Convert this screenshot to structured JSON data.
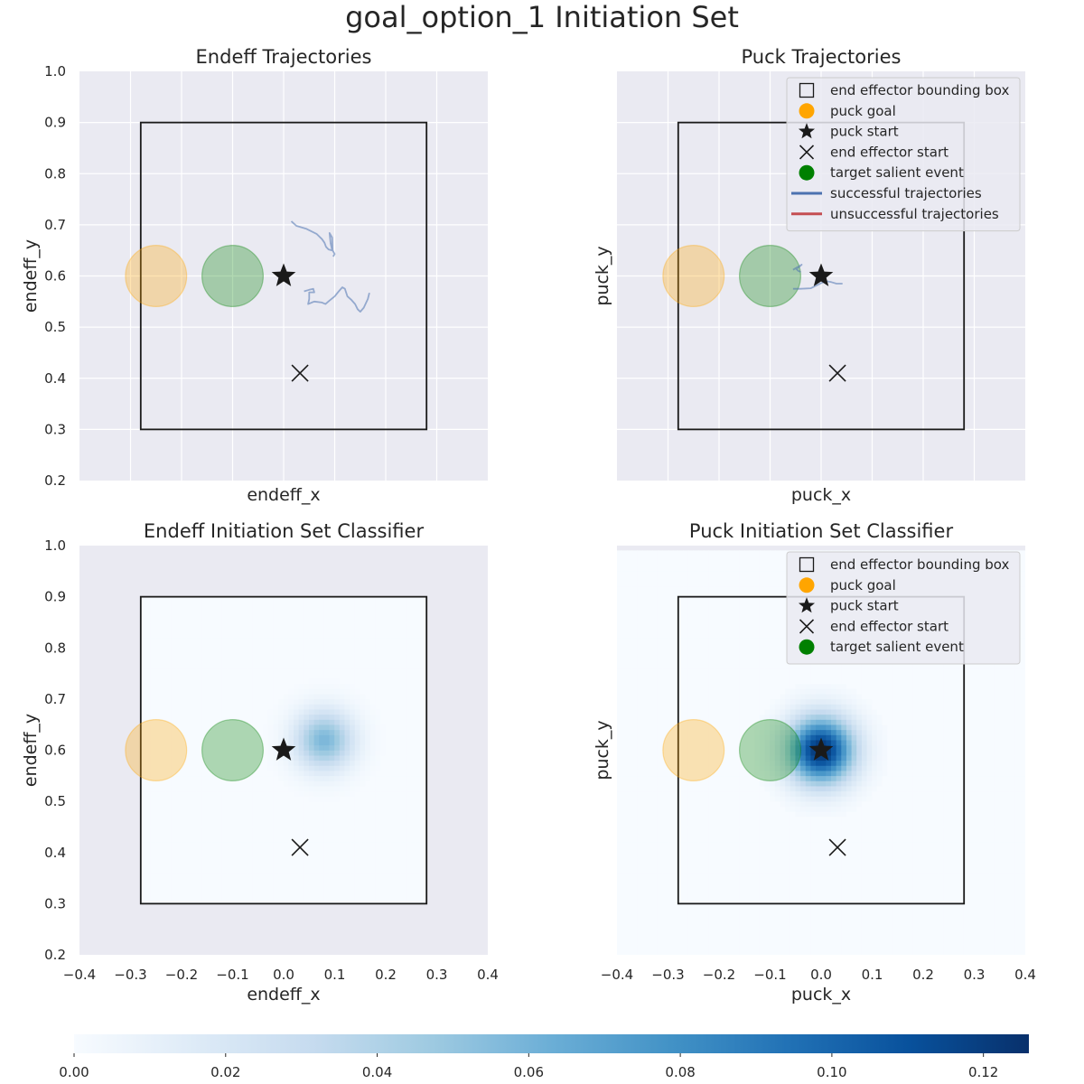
{
  "figure": {
    "title": "goal_option_1 Initiation Set",
    "colorbar": {
      "min": 0.0,
      "max": 0.126,
      "ticks": [
        "0.00",
        "0.02",
        "0.04",
        "0.06",
        "0.08",
        "0.10",
        "0.12"
      ],
      "colormap": "Blues"
    }
  },
  "chart_data": [
    {
      "id": "endeff-trajectories",
      "type": "line",
      "title": "Endeff Trajectories",
      "xlabel": "endeff_x",
      "ylabel": "endeff_y",
      "xlim": [
        -0.4,
        0.4
      ],
      "ylim": [
        0.2,
        1.0
      ],
      "xticks_shown": false,
      "yticks_shown": true,
      "yticks": [
        "0.2",
        "0.3",
        "0.4",
        "0.5",
        "0.6",
        "0.7",
        "0.8",
        "0.9",
        "1.0"
      ],
      "grid": true,
      "bounding_box": {
        "x": [
          -0.28,
          0.28
        ],
        "y": [
          0.3,
          0.9
        ]
      },
      "puck_goal": {
        "x": -0.25,
        "y": 0.6
      },
      "target_salient_event": {
        "x": -0.1,
        "y": 0.6
      },
      "puck_start": {
        "x": 0.0,
        "y": 0.6
      },
      "end_effector_start": {
        "x": 0.032,
        "y": 0.41
      },
      "trajectories": [
        {
          "outcome": "successful",
          "points": [
            [
              0.015,
              0.707
            ],
            [
              0.025,
              0.698
            ],
            [
              0.045,
              0.692
            ],
            [
              0.065,
              0.682
            ],
            [
              0.075,
              0.672
            ],
            [
              0.08,
              0.665
            ],
            [
              0.083,
              0.657
            ],
            [
              0.088,
              0.652
            ],
            [
              0.095,
              0.65
            ],
            [
              0.092,
              0.664
            ],
            [
              0.09,
              0.684
            ],
            [
              0.095,
              0.675
            ],
            [
              0.096,
              0.65
            ],
            [
              0.1,
              0.643
            ],
            [
              0.097,
              0.638
            ]
          ]
        },
        {
          "outcome": "successful",
          "points": [
            [
              0.04,
              0.57
            ],
            [
              0.05,
              0.573
            ],
            [
              0.058,
              0.575
            ],
            [
              0.06,
              0.568
            ],
            [
              0.05,
              0.568
            ],
            [
              0.05,
              0.555
            ],
            [
              0.048,
              0.545
            ],
            [
              0.055,
              0.548
            ],
            [
              0.06,
              0.55
            ],
            [
              0.075,
              0.548
            ],
            [
              0.082,
              0.545
            ],
            [
              0.09,
              0.552
            ],
            [
              0.1,
              0.56
            ],
            [
              0.108,
              0.57
            ],
            [
              0.115,
              0.578
            ],
            [
              0.12,
              0.575
            ],
            [
              0.125,
              0.56
            ],
            [
              0.133,
              0.553
            ],
            [
              0.14,
              0.545
            ],
            [
              0.145,
              0.535
            ],
            [
              0.15,
              0.53
            ],
            [
              0.157,
              0.538
            ],
            [
              0.165,
              0.555
            ],
            [
              0.168,
              0.567
            ]
          ]
        }
      ]
    },
    {
      "id": "puck-trajectories",
      "type": "line",
      "title": "Puck Trajectories",
      "xlabel": "puck_x",
      "ylabel": "puck_y",
      "xlim": [
        -0.4,
        0.4
      ],
      "ylim": [
        0.2,
        1.0
      ],
      "xticks_shown": false,
      "yticks_shown": false,
      "grid": true,
      "bounding_box": {
        "x": [
          -0.28,
          0.28
        ],
        "y": [
          0.3,
          0.9
        ]
      },
      "puck_goal": {
        "x": -0.25,
        "y": 0.6
      },
      "target_salient_event": {
        "x": -0.1,
        "y": 0.6
      },
      "puck_start": {
        "x": 0.0,
        "y": 0.6
      },
      "end_effector_start": {
        "x": 0.032,
        "y": 0.41
      },
      "legend": {
        "placement": "top-right",
        "entries": [
          "end effector bounding box",
          "puck goal",
          "puck start",
          "end effector start",
          "target salient event",
          "successful trajectories",
          "unsuccessful trajectories"
        ]
      },
      "trajectories": [
        {
          "outcome": "successful",
          "points": [
            [
              -0.055,
              0.612
            ],
            [
              -0.045,
              0.618
            ],
            [
              -0.038,
              0.622
            ],
            [
              -0.045,
              0.616
            ],
            [
              -0.05,
              0.615
            ],
            [
              -0.045,
              0.61
            ],
            [
              -0.04,
              0.608
            ]
          ]
        },
        {
          "outcome": "successful",
          "points": [
            [
              -0.055,
              0.575
            ],
            [
              -0.04,
              0.575
            ],
            [
              -0.02,
              0.576
            ],
            [
              0.0,
              0.586
            ],
            [
              0.01,
              0.59
            ],
            [
              0.02,
              0.588
            ],
            [
              0.03,
              0.585
            ],
            [
              0.042,
              0.585
            ]
          ]
        }
      ]
    },
    {
      "id": "endeff-classifier",
      "type": "heatmap",
      "title": "Endeff Initiation Set Classifier",
      "xlabel": "endeff_x",
      "ylabel": "endeff_y",
      "xlim": [
        -0.4,
        0.4
      ],
      "ylim": [
        0.2,
        1.0
      ],
      "xticks_shown": true,
      "yticks_shown": true,
      "xticks": [
        "−0.4",
        "−0.3",
        "−0.2",
        "−0.1",
        "0.0",
        "0.1",
        "0.2",
        "0.3",
        "0.4"
      ],
      "yticks": [
        "0.2",
        "0.3",
        "0.4",
        "0.5",
        "0.6",
        "0.7",
        "0.8",
        "0.9",
        "1.0"
      ],
      "grid": false,
      "heatmap_extent": {
        "x": [
          -0.28,
          0.28
        ],
        "y": [
          0.3,
          0.9
        ]
      },
      "hotspot": {
        "x": 0.08,
        "y": 0.62,
        "sigma": 0.04,
        "peak": 0.058
      },
      "bounding_box": {
        "x": [
          -0.28,
          0.28
        ],
        "y": [
          0.3,
          0.9
        ]
      },
      "puck_goal": {
        "x": -0.25,
        "y": 0.6
      },
      "target_salient_event": {
        "x": -0.1,
        "y": 0.6
      },
      "puck_start": {
        "x": 0.0,
        "y": 0.6
      },
      "end_effector_start": {
        "x": 0.032,
        "y": 0.41
      }
    },
    {
      "id": "puck-classifier",
      "type": "heatmap",
      "title": "Puck Initiation Set Classifier",
      "xlabel": "puck_x",
      "ylabel": "puck_y",
      "xlim": [
        -0.4,
        0.4
      ],
      "ylim": [
        0.2,
        1.0
      ],
      "xticks_shown": true,
      "yticks_shown": false,
      "xticks": [
        "−0.4",
        "−0.3",
        "−0.2",
        "−0.1",
        "0.0",
        "0.1",
        "0.2",
        "0.3",
        "0.4"
      ],
      "grid": false,
      "heatmap_extent": {
        "x": [
          -0.4,
          0.395
        ],
        "y": [
          0.2,
          0.99
        ]
      },
      "hotspot": {
        "x": 0.0,
        "y": 0.6,
        "sigma": 0.045,
        "peak": 0.126
      },
      "bounding_box": {
        "x": [
          -0.28,
          0.28
        ],
        "y": [
          0.3,
          0.9
        ]
      },
      "puck_goal": {
        "x": -0.25,
        "y": 0.6
      },
      "target_salient_event": {
        "x": -0.1,
        "y": 0.6
      },
      "puck_start": {
        "x": 0.0,
        "y": 0.6
      },
      "end_effector_start": {
        "x": 0.032,
        "y": 0.41
      },
      "legend": {
        "placement": "top-right",
        "entries": [
          "end effector bounding box",
          "puck goal",
          "puck start",
          "end effector start",
          "target salient event"
        ]
      }
    }
  ],
  "colors": {
    "axes_bg": "#eaeaf2",
    "grid": "#ffffff",
    "puck_goal": "#ffa500",
    "target_salient_event": "#008000",
    "marker": "#1a1a1a",
    "successful": "#4c72b0",
    "unsuccessful": "#c44e52"
  }
}
